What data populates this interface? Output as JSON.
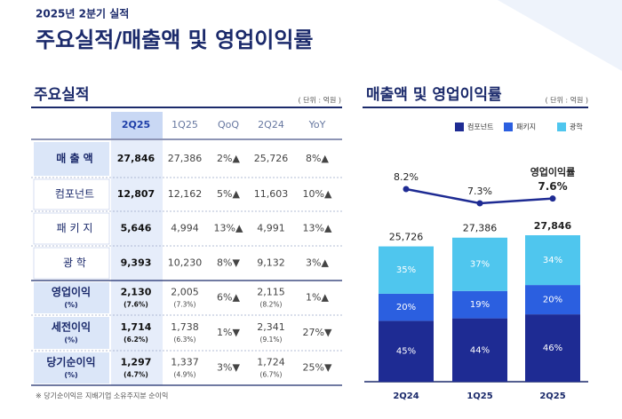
{
  "header": {
    "subtitle": "2025년 2분기 실적",
    "title": "주요실적/매출액 및 영업이익률"
  },
  "table": {
    "title": "주요실적",
    "unit": "( 단위 : 억원 )",
    "columns": [
      "2Q25",
      "1Q25",
      "QoQ",
      "2Q24",
      "YoY"
    ],
    "rows": [
      {
        "label": "매 출 액",
        "cells": [
          {
            "v": "27,846"
          },
          {
            "v": "27,386"
          },
          {
            "v": "2%▲"
          },
          {
            "v": "25,726"
          },
          {
            "v": "8%▲"
          }
        ]
      },
      {
        "label": "컴포넌트",
        "cells": [
          {
            "v": "12,807"
          },
          {
            "v": "12,162"
          },
          {
            "v": "5%▲"
          },
          {
            "v": "11,603"
          },
          {
            "v": "10%▲"
          }
        ]
      },
      {
        "label": "패 키 지",
        "cells": [
          {
            "v": "5,646"
          },
          {
            "v": "4,994"
          },
          {
            "v": "13%▲"
          },
          {
            "v": "4,991"
          },
          {
            "v": "13%▲"
          }
        ]
      },
      {
        "label": "광    학",
        "cells": [
          {
            "v": "9,393"
          },
          {
            "v": "10,230"
          },
          {
            "v": "8%▼"
          },
          {
            "v": "9,132"
          },
          {
            "v": "3%▲"
          }
        ]
      },
      {
        "label": "영업이익",
        "label_sub": "(%)",
        "cells": [
          {
            "v": "2,130",
            "sub": "(7.6%)"
          },
          {
            "v": "2,005",
            "sub": "(7.3%)"
          },
          {
            "v": "6%▲"
          },
          {
            "v": "2,115",
            "sub": "(8.2%)"
          },
          {
            "v": "1%▲"
          }
        ]
      },
      {
        "label": "세전이익",
        "label_sub": "(%)",
        "cells": [
          {
            "v": "1,714",
            "sub": "(6.2%)"
          },
          {
            "v": "1,738",
            "sub": "(6.3%)"
          },
          {
            "v": "1%▼"
          },
          {
            "v": "2,341",
            "sub": "(9.1%)"
          },
          {
            "v": "27%▼"
          }
        ]
      },
      {
        "label": "당기순이익",
        "label_sub": "(%)",
        "cells": [
          {
            "v": "1,297",
            "sub": "(4.7%)"
          },
          {
            "v": "1,337",
            "sub": "(4.9%)"
          },
          {
            "v": "3%▼"
          },
          {
            "v": "1,724",
            "sub": "(6.7%)"
          },
          {
            "v": "25%▼"
          }
        ]
      }
    ],
    "footnote": "※ 당기순이익은 지배기업 소유주지분 순이익"
  },
  "chart_data": {
    "type": "bar",
    "stacked": true,
    "title": "매출액 및 영업이익률",
    "unit": "( 단위 : 억원 )",
    "categories": [
      "2Q24",
      "1Q25",
      "2Q25"
    ],
    "totals": {
      "values": [
        25726,
        27386,
        27846
      ],
      "value_labels": [
        "25,726",
        "27,386",
        "27,846"
      ]
    },
    "series": [
      {
        "name": "컴포넌트",
        "color": "#1e2b93",
        "values": [
          45,
          44,
          46
        ],
        "value_labels": [
          "45%",
          "44%",
          "46%"
        ]
      },
      {
        "name": "패키지",
        "color": "#2b5fe0",
        "values": [
          20,
          19,
          20
        ],
        "value_labels": [
          "20%",
          "19%",
          "20%"
        ]
      },
      {
        "name": "광학",
        "color": "#4fc6ee",
        "values": [
          35,
          37,
          34
        ],
        "value_labels": [
          "35%",
          "37%",
          "34%"
        ]
      }
    ],
    "line": {
      "name": "영업이익률",
      "color": "#1e2b93",
      "values": [
        8.2,
        7.3,
        7.6
      ],
      "value_labels": [
        "8.2%",
        "7.3%",
        "7.6%"
      ]
    }
  }
}
